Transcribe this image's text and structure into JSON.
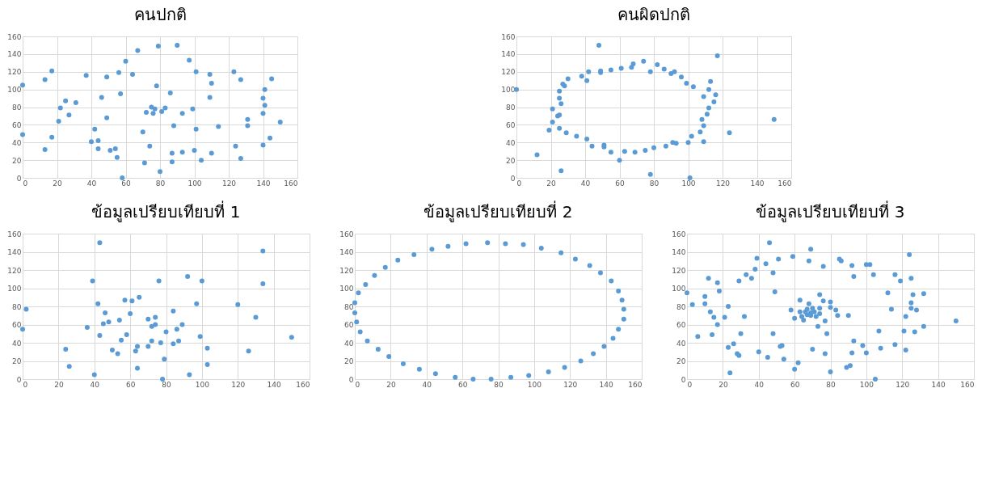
{
  "chart_data": [
    {
      "type": "scatter",
      "title": "คนปกติ",
      "xlim": [
        0,
        160
      ],
      "ylim": [
        0,
        160
      ],
      "xticks": [
        0,
        20,
        40,
        60,
        80,
        100,
        120,
        140,
        160
      ],
      "yticks": [
        0,
        20,
        40,
        60,
        80,
        100,
        120,
        140,
        160
      ],
      "grid": true,
      "marker": "circle",
      "legend": false,
      "series": [
        {
          "color": "#5b9bd5",
          "x": [
            0,
            0,
            13,
            13,
            17,
            17,
            21,
            22,
            25,
            27,
            31,
            37,
            40,
            42,
            44,
            44,
            46,
            49,
            49,
            51,
            54,
            55,
            56,
            57,
            58,
            60,
            64,
            67,
            70,
            71,
            72,
            74,
            75,
            76,
            77,
            78,
            79,
            80,
            81,
            83,
            86,
            87,
            87,
            88,
            90,
            93,
            93,
            97,
            99,
            100,
            101,
            101,
            104,
            109,
            109,
            110,
            110,
            114,
            123,
            124,
            127,
            127,
            131,
            131,
            140,
            140,
            140,
            141,
            141,
            144,
            145,
            150
          ],
          "values": [
            105,
            49,
            111,
            32,
            121,
            46,
            64,
            79,
            87,
            71,
            85,
            116,
            41,
            55,
            42,
            33,
            91,
            114,
            68,
            31,
            33,
            23,
            119,
            95,
            0,
            132,
            117,
            144,
            52,
            17,
            74,
            36,
            80,
            73,
            78,
            104,
            149,
            7,
            75,
            79,
            96,
            28,
            18,
            59,
            150,
            73,
            29,
            133,
            78,
            31,
            55,
            120,
            20,
            91,
            117,
            107,
            28,
            58,
            120,
            36,
            111,
            22,
            66,
            59,
            37,
            90,
            73,
            100,
            82,
            45,
            112,
            63
          ]
        }
      ]
    },
    {
      "type": "scatter",
      "title": "คนผิดปกติ",
      "xlim": [
        0,
        160
      ],
      "ylim": [
        0,
        160
      ],
      "xticks": [
        0,
        20,
        40,
        60,
        80,
        100,
        120,
        140,
        160
      ],
      "yticks": [
        0,
        20,
        40,
        60,
        80,
        100,
        120,
        140,
        160
      ],
      "grid": true,
      "marker": "circle",
      "legend": false,
      "series": [
        {
          "color": "#5b9bd5",
          "x": [
            0,
            12,
            19,
            21,
            21,
            24,
            25,
            25,
            25,
            26,
            25,
            26,
            27,
            28,
            29,
            30,
            35,
            38,
            41,
            41,
            42,
            44,
            48,
            49,
            49,
            51,
            51,
            55,
            55,
            60,
            61,
            63,
            67,
            68,
            69,
            74,
            75,
            78,
            78,
            80,
            82,
            86,
            87,
            90,
            91,
            92,
            93,
            96,
            99,
            100,
            101,
            102,
            103,
            107,
            108,
            109,
            109,
            109,
            111,
            112,
            112,
            113,
            115,
            116,
            117,
            124,
            150
          ],
          "values": [
            100,
            26,
            54,
            63,
            78,
            70,
            71,
            98,
            90,
            84,
            56,
            8,
            106,
            104,
            51,
            112,
            47,
            115,
            110,
            44,
            120,
            36,
            150,
            121,
            119,
            37,
            35,
            122,
            29,
            20,
            124,
            30,
            125,
            129,
            29,
            132,
            31,
            120,
            4,
            34,
            128,
            123,
            36,
            118,
            40,
            120,
            39,
            114,
            107,
            40,
            0,
            47,
            103,
            52,
            66,
            92,
            59,
            41,
            72,
            79,
            100,
            109,
            86,
            94,
            138,
            51,
            66
          ]
        }
      ]
    },
    {
      "type": "scatter",
      "title": "ข้อมูลเปรียบเทียบที่ 1",
      "xlim": [
        0,
        160
      ],
      "ylim": [
        0,
        160
      ],
      "xticks": [
        0,
        20,
        40,
        60,
        80,
        100,
        120,
        140,
        160
      ],
      "yticks": [
        0,
        20,
        40,
        60,
        80,
        100,
        120,
        140,
        160
      ],
      "grid": true,
      "marker": "circle",
      "legend": false,
      "series": [
        {
          "color": "#5b9bd5",
          "x": [
            0,
            2,
            24,
            26,
            36,
            39,
            40,
            42,
            43,
            43,
            45,
            46,
            48,
            50,
            53,
            54,
            55,
            57,
            58,
            60,
            61,
            63,
            64,
            64,
            65,
            70,
            70,
            72,
            72,
            74,
            74,
            76,
            77,
            78,
            79,
            80,
            84,
            84,
            86,
            87,
            89,
            92,
            93,
            97,
            99,
            100,
            103,
            103,
            120,
            126,
            130,
            134,
            134,
            150
          ],
          "values": [
            55,
            77,
            33,
            14,
            57,
            108,
            5,
            83,
            150,
            48,
            61,
            73,
            63,
            32,
            28,
            65,
            43,
            87,
            49,
            72,
            86,
            31,
            12,
            36,
            90,
            66,
            36,
            42,
            58,
            60,
            68,
            108,
            40,
            0,
            22,
            52,
            75,
            39,
            55,
            42,
            60,
            113,
            5,
            83,
            47,
            108,
            34,
            16,
            82,
            31,
            68,
            141,
            105,
            46
          ]
        }
      ]
    },
    {
      "type": "scatter",
      "title": "ข้อมูลเปรียบเทียบที่ 2",
      "xlim": [
        0,
        160
      ],
      "ylim": [
        0,
        160
      ],
      "xticks": [
        0,
        20,
        40,
        60,
        80,
        100,
        120,
        140,
        160
      ],
      "yticks": [
        0,
        20,
        40,
        60,
        80,
        100,
        120,
        140,
        160
      ],
      "grid": true,
      "marker": "circle",
      "legend": false,
      "series": [
        {
          "color": "#5b9bd5",
          "x": [
            0,
            0,
            1,
            3,
            7,
            13,
            19,
            27,
            36,
            45,
            56,
            66,
            76,
            87,
            97,
            108,
            117,
            126,
            133,
            139,
            144,
            147,
            150,
            150,
            149,
            147,
            143,
            137,
            131,
            123,
            115,
            104,
            94,
            84,
            74,
            62,
            52,
            43,
            33,
            24,
            17,
            11,
            6,
            2
          ],
          "values": [
            84,
            73,
            63,
            52,
            42,
            33,
            25,
            17,
            11,
            6,
            2,
            0,
            0,
            2,
            4,
            8,
            13,
            20,
            28,
            36,
            45,
            55,
            66,
            77,
            87,
            97,
            108,
            117,
            125,
            132,
            139,
            144,
            148,
            149,
            150,
            149,
            146,
            143,
            137,
            131,
            123,
            114,
            104,
            95
          ]
        }
      ]
    },
    {
      "type": "scatter",
      "title": "ข้อมูลเปรียบเทียบที่ 3",
      "xlim": [
        0,
        160
      ],
      "ylim": [
        0,
        160
      ],
      "xticks": [
        0,
        20,
        40,
        60,
        80,
        100,
        120,
        140,
        160
      ],
      "yticks": [
        0,
        20,
        40,
        60,
        80,
        100,
        120,
        140,
        160
      ],
      "grid": true,
      "marker": "circle",
      "legend": false,
      "series": [
        {
          "color": "#5b9bd5",
          "x": [
            0,
            3,
            6,
            10,
            10,
            12,
            13,
            14,
            15,
            17,
            17,
            18,
            21,
            23,
            23,
            24,
            26,
            28,
            29,
            29,
            30,
            32,
            33,
            36,
            38,
            39,
            40,
            44,
            45,
            46,
            48,
            48,
            49,
            51,
            52,
            53,
            54,
            58,
            59,
            60,
            60,
            62,
            63,
            63,
            64,
            65,
            66,
            67,
            67,
            68,
            68,
            69,
            69,
            69,
            70,
            70,
            71,
            72,
            73,
            74,
            74,
            74,
            76,
            76,
            77,
            77,
            78,
            80,
            80,
            80,
            83,
            84,
            85,
            86,
            90,
            89,
            91,
            92,
            92,
            93,
            93,
            98,
            100,
            100,
            102,
            104,
            105,
            107,
            108,
            112,
            114,
            116,
            119,
            116,
            121,
            122,
            122,
            124,
            125,
            125,
            125,
            126,
            127,
            128,
            132,
            132,
            150
          ],
          "values": [
            95,
            82,
            47,
            83,
            91,
            111,
            74,
            49,
            68,
            106,
            60,
            97,
            68,
            80,
            35,
            7,
            39,
            28,
            26,
            108,
            50,
            69,
            115,
            111,
            121,
            133,
            30,
            127,
            24,
            150,
            50,
            117,
            96,
            132,
            36,
            37,
            22,
            76,
            135,
            67,
            11,
            18,
            74,
            87,
            69,
            65,
            74,
            77,
            71,
            130,
            83,
            73,
            143,
            70,
            78,
            33,
            74,
            69,
            58,
            72,
            78,
            93,
            124,
            86,
            28,
            64,
            50,
            8,
            79,
            85,
            76,
            70,
            132,
            130,
            70,
            13,
            15,
            125,
            29,
            42,
            113,
            37,
            126,
            29,
            126,
            115,
            0,
            53,
            34,
            95,
            77,
            115,
            108,
            38,
            53,
            32,
            69,
            137,
            84,
            78,
            111,
            93,
            52,
            76,
            94,
            58,
            64
          ]
        }
      ]
    }
  ]
}
